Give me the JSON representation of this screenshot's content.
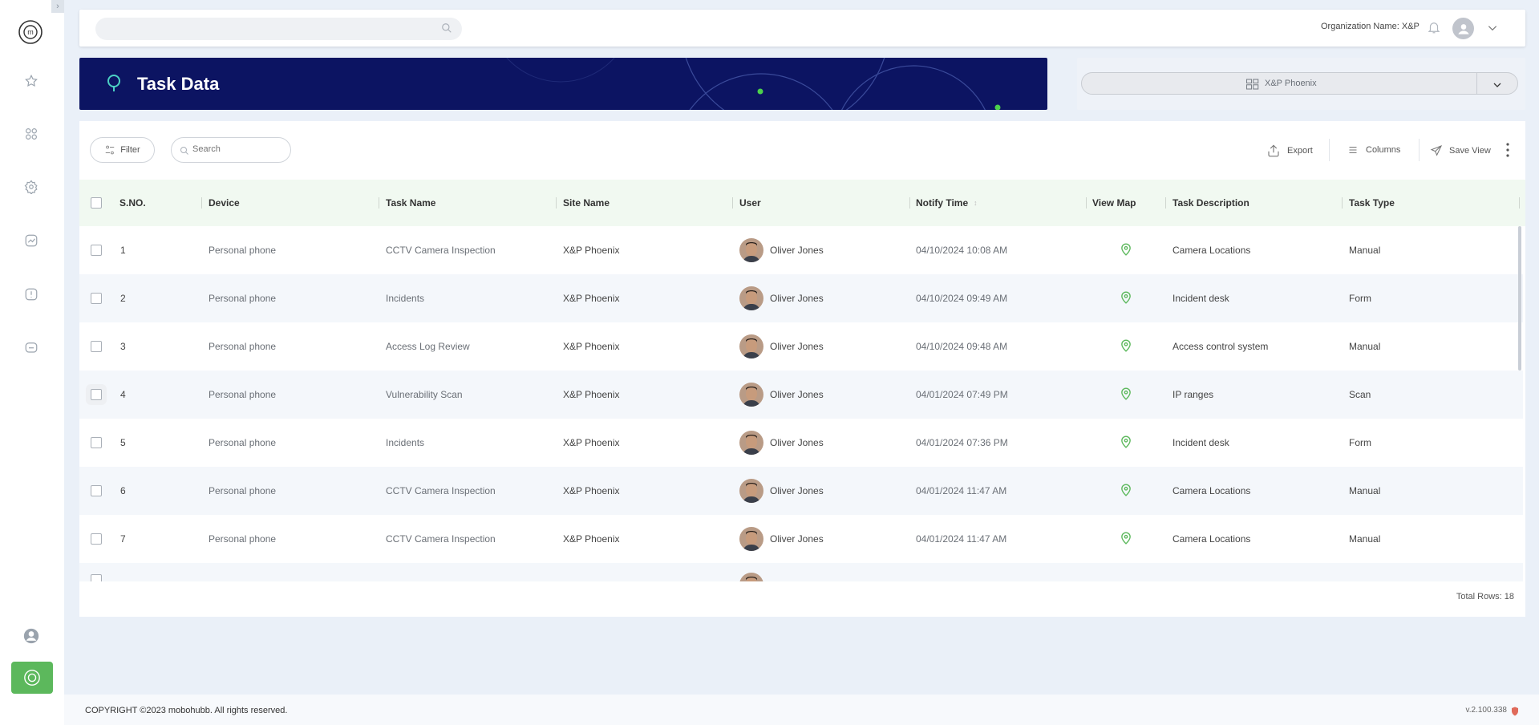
{
  "app": {
    "title": "Task Data",
    "org_label": "Organization Name: X&P",
    "accent": "#5cb85c",
    "banner_bg": "#0c1462"
  },
  "sidebar": {
    "items": [
      {
        "icon": "star-icon"
      },
      {
        "icon": "grid-icon"
      },
      {
        "icon": "gear-icon"
      },
      {
        "icon": "chart-icon"
      },
      {
        "icon": "alert-icon"
      },
      {
        "icon": "folder-icon"
      },
      {
        "icon": "user-icon"
      }
    ]
  },
  "site_selector": {
    "value": "X&P Phoenix"
  },
  "toolbar": {
    "filter_label": "Filter",
    "search_placeholder": "Search",
    "export_label": "Export",
    "columns_label": "Columns",
    "save_view_label": "Save View"
  },
  "table": {
    "columns": [
      "S.NO.",
      "Device",
      "Task Name",
      "Site Name",
      "User",
      "Notify Time",
      "View Map",
      "Task Description",
      "Task Type"
    ],
    "rows": [
      {
        "sno": "1",
        "device": "Personal phone",
        "task": "CCTV Camera Inspection",
        "site": "X&P Phoenix",
        "user": "Oliver Jones",
        "time": "04/10/2024 10:08 AM",
        "desc": "Camera Locations",
        "type": "Manual"
      },
      {
        "sno": "2",
        "device": "Personal phone",
        "task": "Incidents",
        "site": "X&P Phoenix",
        "user": "Oliver Jones",
        "time": "04/10/2024 09:49 AM",
        "desc": "Incident desk",
        "type": "Form"
      },
      {
        "sno": "3",
        "device": "Personal phone",
        "task": "Access Log Review",
        "site": "X&P Phoenix",
        "user": "Oliver Jones",
        "time": "04/10/2024 09:48 AM",
        "desc": "Access control system",
        "type": "Manual"
      },
      {
        "sno": "4",
        "device": "Personal phone",
        "task": "Vulnerability Scan",
        "site": "X&P Phoenix",
        "user": "Oliver Jones",
        "time": "04/01/2024 07:49 PM",
        "desc": "IP ranges",
        "type": "Scan"
      },
      {
        "sno": "5",
        "device": "Personal phone",
        "task": "Incidents",
        "site": "X&P Phoenix",
        "user": "Oliver Jones",
        "time": "04/01/2024 07:36 PM",
        "desc": "Incident desk",
        "type": "Form"
      },
      {
        "sno": "6",
        "device": "Personal phone",
        "task": "CCTV Camera Inspection",
        "site": "X&P Phoenix",
        "user": "Oliver Jones",
        "time": "04/01/2024 11:47 AM",
        "desc": "Camera Locations",
        "type": "Manual"
      },
      {
        "sno": "7",
        "device": "Personal phone",
        "task": "CCTV Camera Inspection",
        "site": "X&P Phoenix",
        "user": "Oliver Jones",
        "time": "04/01/2024 11:47 AM",
        "desc": "Camera Locations",
        "type": "Manual"
      }
    ],
    "total_rows_label": "Total Rows: 18"
  },
  "footer": {
    "copyright": "COPYRIGHT ©2023 mobohubb. All rights reserved.",
    "version": "v.2.100.338"
  }
}
